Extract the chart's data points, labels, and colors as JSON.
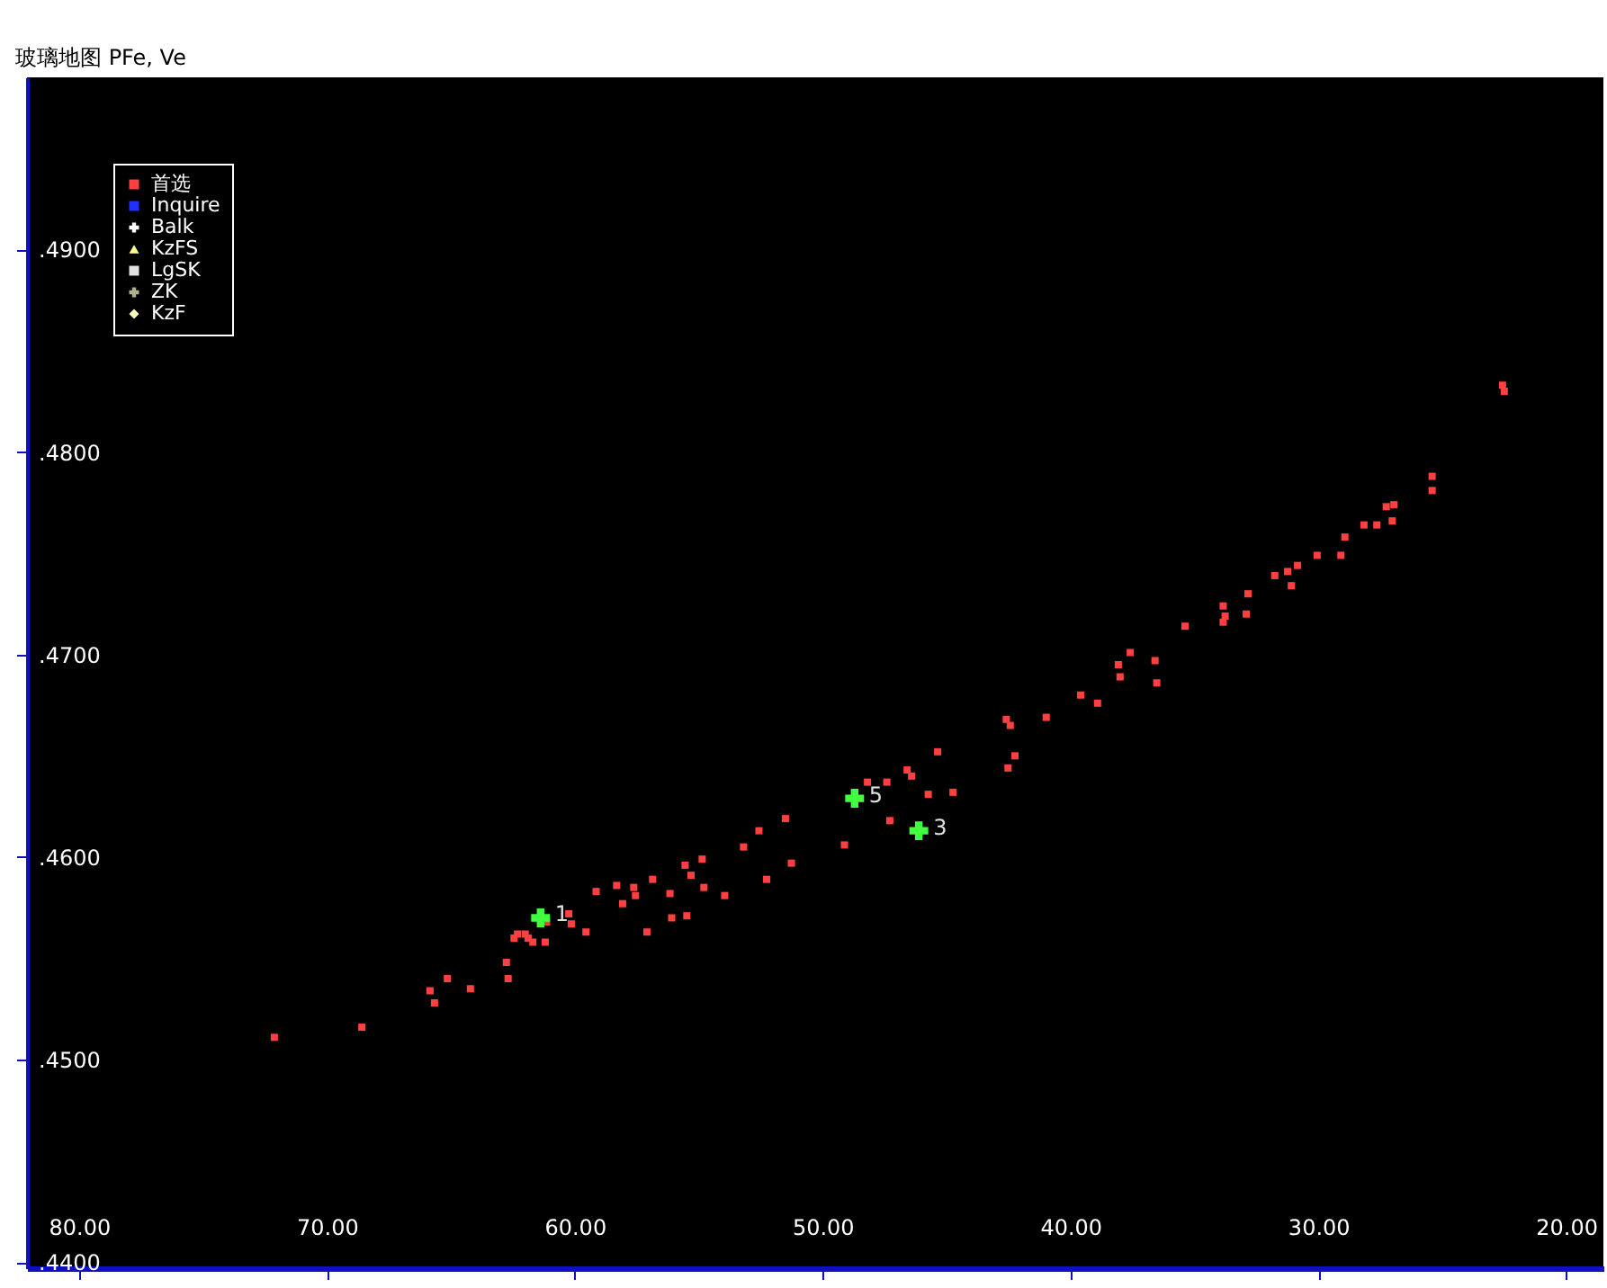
{
  "chart_data": {
    "type": "scatter",
    "title": "玻璃地图   PFe, Ve",
    "xlim": [
      82.1,
      18.5
    ],
    "ylim": [
      0.4397,
      0.4985
    ],
    "xticks": [
      {
        "value": 80,
        "label": "80.00"
      },
      {
        "value": 70,
        "label": "70.00"
      },
      {
        "value": 60,
        "label": "60.00"
      },
      {
        "value": 50,
        "label": "50.00"
      },
      {
        "value": 40,
        "label": "40.00"
      },
      {
        "value": 30,
        "label": "30.00"
      },
      {
        "value": 20,
        "label": "20.00"
      }
    ],
    "yticks": [
      {
        "value": 0.44,
        "label": ".4400"
      },
      {
        "value": 0.45,
        "label": ".4500"
      },
      {
        "value": 0.46,
        "label": ".4600"
      },
      {
        "value": 0.47,
        "label": ".4700"
      },
      {
        "value": 0.48,
        "label": ".4800"
      },
      {
        "value": 0.49,
        "label": ".4900"
      }
    ],
    "grid": false,
    "legend": "top left",
    "series": [
      {
        "name": "首选",
        "color": "#ff4040",
        "marker": "square",
        "x": [
          72.12,
          68.59,
          65.84,
          65.66,
          65.14,
          64.21,
          62.76,
          62.69,
          62.45,
          62.31,
          62.0,
          61.88,
          61.69,
          61.19,
          61.14,
          60.24,
          60.14,
          59.55,
          59.14,
          58.31,
          58.07,
          57.62,
          57.55,
          57.09,
          56.86,
          56.16,
          56.09,
          55.55,
          55.48,
          55.31,
          54.86,
          54.79,
          53.95,
          53.19,
          52.57,
          52.26,
          51.5,
          51.26,
          49.12,
          48.19,
          47.41,
          47.29,
          46.59,
          46.41,
          45.74,
          45.36,
          44.74,
          42.59,
          42.43,
          42.52,
          42.24,
          40.98,
          39.59,
          38.91,
          38.07,
          38.0,
          37.59,
          36.59,
          36.52,
          35.38,
          33.84,
          33.76,
          33.84,
          32.91,
          32.84,
          31.76,
          31.24,
          31.09,
          30.84,
          30.05,
          29.09,
          28.93,
          28.16,
          27.64,
          27.26,
          26.95,
          27.02,
          25.41,
          25.41,
          22.57,
          22.5
        ],
        "values": [
          0.4511,
          0.4516,
          0.4534,
          0.4528,
          0.454,
          0.4535,
          0.4548,
          0.454,
          0.456,
          0.4562,
          0.4562,
          0.456,
          0.4558,
          0.4558,
          0.4568,
          0.4572,
          0.4567,
          0.4563,
          0.4583,
          0.4586,
          0.4577,
          0.4585,
          0.4581,
          0.4563,
          0.4589,
          0.4582,
          0.457,
          0.4596,
          0.4571,
          0.4591,
          0.4599,
          0.4585,
          0.4581,
          0.4605,
          0.4613,
          0.4589,
          0.4619,
          0.4597,
          0.4606,
          0.4637,
          0.4637,
          0.4618,
          0.4643,
          0.464,
          0.4631,
          0.4652,
          0.4632,
          0.4668,
          0.4665,
          0.4644,
          0.465,
          0.4669,
          0.468,
          0.4676,
          0.4695,
          0.4689,
          0.4701,
          0.4697,
          0.4686,
          0.4714,
          0.4724,
          0.4719,
          0.4716,
          0.472,
          0.473,
          0.4739,
          0.4741,
          0.4734,
          0.4744,
          0.4749,
          0.4749,
          0.4758,
          0.4764,
          0.4764,
          0.4773,
          0.4774,
          0.4766,
          0.4788,
          0.4781,
          0.4833,
          0.483
        ]
      },
      {
        "name": "Inquire",
        "color": "#2030ff",
        "marker": "square"
      },
      {
        "name": "Balk",
        "color": "#ffffff",
        "marker": "cross"
      },
      {
        "name": "KzFS",
        "color": "#ffff90",
        "marker": "triangle"
      },
      {
        "name": "LgSK",
        "color": "#e0e0e0",
        "marker": "square"
      },
      {
        "name": "ZK",
        "color": "#b0b090",
        "marker": "cross"
      },
      {
        "name": "KzF",
        "color": "#ffffc0",
        "marker": "diamond"
      },
      {
        "color": "#40ff40",
        "marker": "cross",
        "x": [
          61.38,
          48.71,
          46.12
        ],
        "values": [
          0.457,
          0.4629,
          0.4613
        ]
      }
    ],
    "annotations": [
      {
        "text": "1",
        "x": 61.38,
        "y": 0.457
      },
      {
        "text": "5",
        "x": 48.71,
        "y": 0.4629
      },
      {
        "text": "3",
        "x": 46.12,
        "y": 0.4613
      }
    ]
  }
}
